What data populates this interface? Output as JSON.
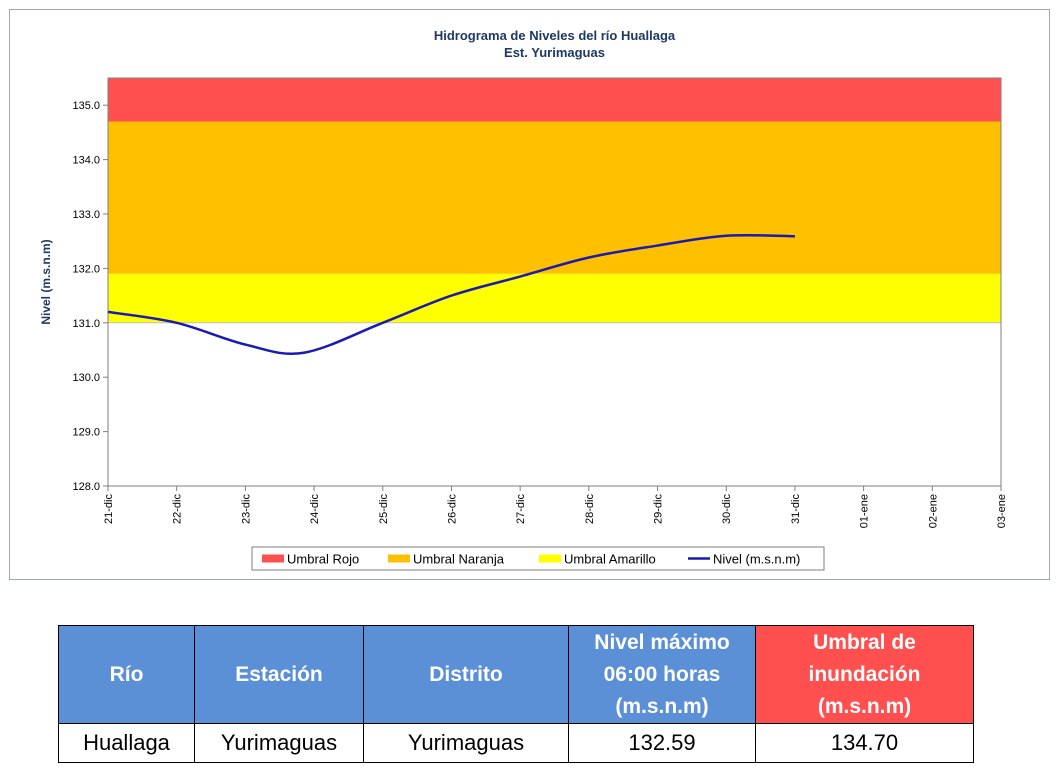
{
  "chart_data": {
    "type": "line",
    "title": "Hidrograma de Niveles del río Huallaga",
    "subtitle": "Est. Yurimaguas",
    "ylabel": "Nivel (m.s.n.m)",
    "xlabel": "",
    "ylim": [
      128.0,
      135.5
    ],
    "yticks": [
      "128.0",
      "129.0",
      "130.0",
      "131.0",
      "132.0",
      "133.0",
      "134.0",
      "135.0"
    ],
    "categories": [
      "21-dic",
      "22-dic",
      "23-dic",
      "24-dic",
      "25-dic",
      "26-dic",
      "27-dic",
      "28-dic",
      "29-dic",
      "30-dic",
      "31-dic",
      "01-ene",
      "02-ene",
      "03-ene"
    ],
    "thresholds": [
      {
        "name": "Umbral Rojo",
        "from": 134.7,
        "to": 135.5,
        "color": "#ff5050"
      },
      {
        "name": "Umbral Naranja",
        "from": 131.9,
        "to": 134.7,
        "color": "#ffc000"
      },
      {
        "name": "Umbral Amarillo",
        "from": 131.0,
        "to": 131.9,
        "color": "#ffff00"
      }
    ],
    "series": [
      {
        "name": "Nivel (m.s.n.m)",
        "color": "#1a1ab4",
        "x": [
          0,
          1,
          2,
          2.85,
          4,
          5,
          6,
          7,
          8,
          9,
          10
        ],
        "values": [
          131.2,
          131.0,
          130.6,
          130.45,
          131.0,
          131.5,
          131.85,
          132.2,
          132.42,
          132.6,
          132.59
        ]
      }
    ],
    "legend_position": "bottom",
    "grid": false
  },
  "table": {
    "headers": {
      "rio": "Río",
      "estacion": "Estación",
      "distrito": "Distrito",
      "nivel": [
        "Nivel máximo",
        "06:00 horas",
        "(m.s.n.m)"
      ],
      "umbral": [
        "Umbral de",
        "inundación",
        "(m.s.n.m)"
      ]
    },
    "row": {
      "rio": "Huallaga",
      "estacion": "Yurimaguas",
      "distrito": "Yurimaguas",
      "nivel": "132.59",
      "umbral": "134.70"
    }
  }
}
